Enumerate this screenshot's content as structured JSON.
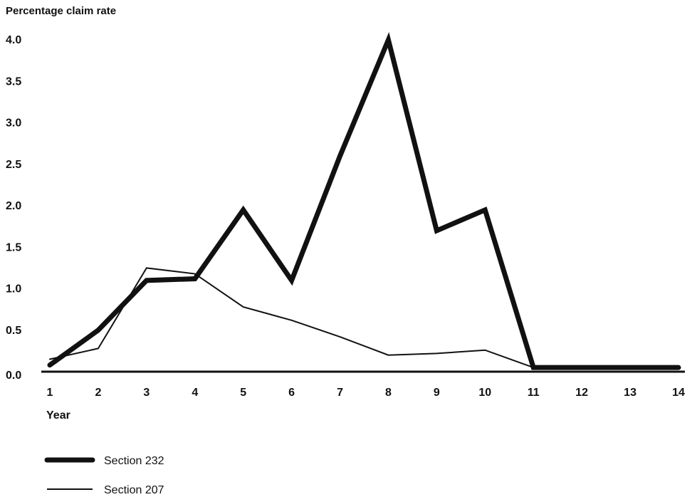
{
  "chart_data": {
    "type": "line",
    "ylabel": "Percentage claim rate",
    "xlabel": "Year",
    "x": [
      1,
      2,
      3,
      4,
      5,
      6,
      7,
      8,
      9,
      10,
      11,
      12,
      13,
      14
    ],
    "x_tick_labels": [
      "1",
      "2",
      "3",
      "4",
      "5",
      "6",
      "7",
      "8",
      "9",
      "10",
      "11",
      "12",
      "13",
      "14"
    ],
    "y_tick_labels": [
      "0.0",
      "0.5",
      "1.0",
      "1.5",
      "2.0",
      "2.5",
      "3.0",
      "3.5",
      "4.0"
    ],
    "y_ticks": [
      0.0,
      0.5,
      1.0,
      1.5,
      2.0,
      2.5,
      3.0,
      3.5,
      4.0
    ],
    "ylim": [
      0,
      4.0
    ],
    "xlim": [
      1,
      14
    ],
    "grid": false,
    "legend_position": "bottom-left",
    "series": [
      {
        "name": "Section 232",
        "style": "thick",
        "color": "#111111",
        "values": [
          0.08,
          0.5,
          1.1,
          1.12,
          1.95,
          1.1,
          2.6,
          4.0,
          1.7,
          1.95,
          0.05,
          0.05,
          0.05,
          0.05
        ]
      },
      {
        "name": "Section 207",
        "style": "thin",
        "color": "#111111",
        "values": [
          0.15,
          0.28,
          1.25,
          1.18,
          0.78,
          0.62,
          0.42,
          0.2,
          0.22,
          0.26,
          0.05,
          0.05,
          0.05,
          0.05
        ]
      }
    ]
  }
}
